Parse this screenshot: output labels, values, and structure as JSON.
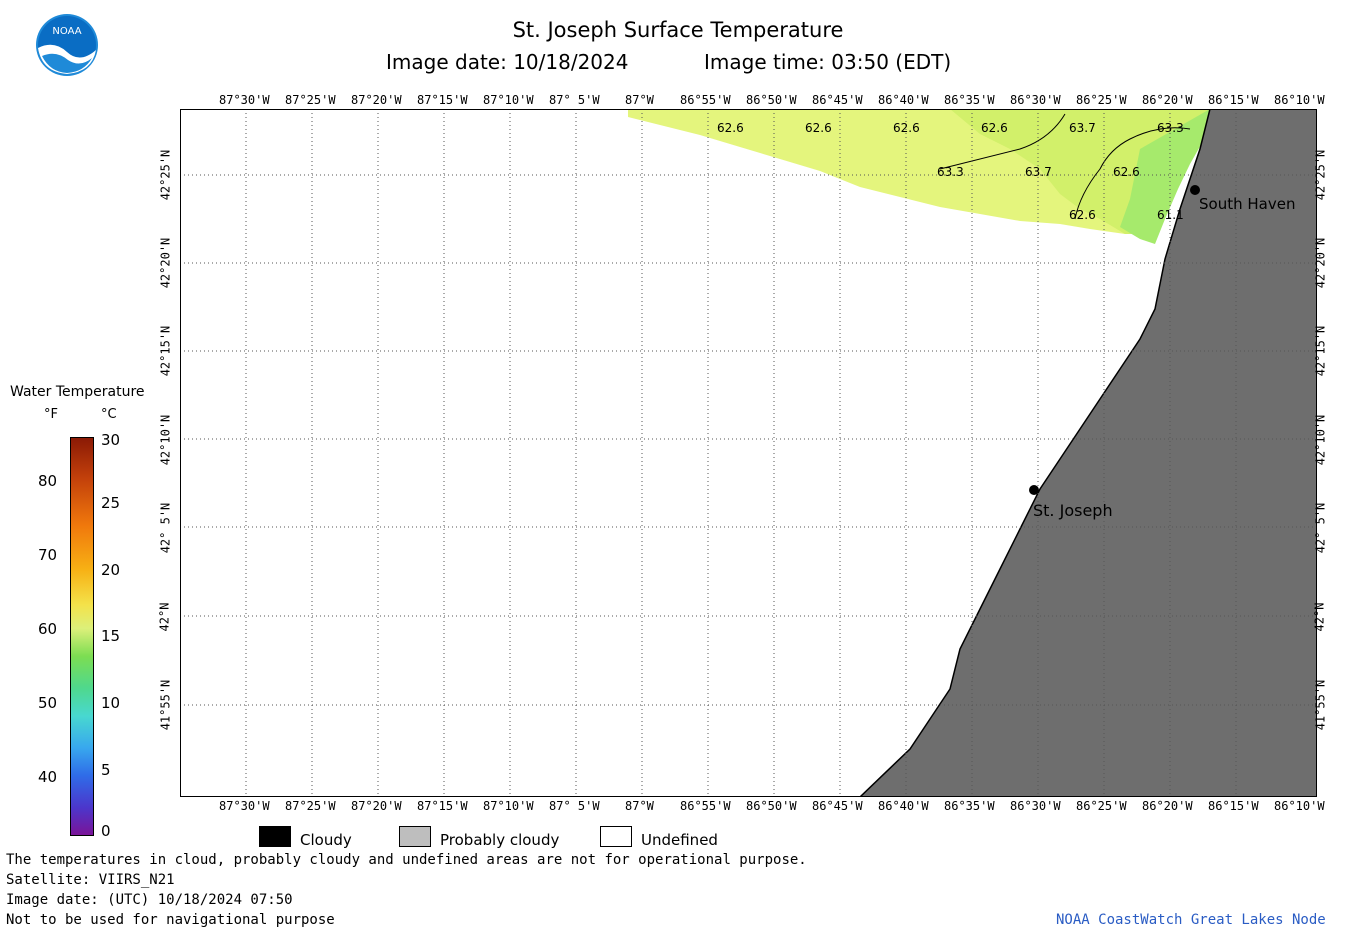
{
  "header": {
    "title": "St. Joseph Surface Temperature",
    "image_date_label": "Image date: 10/18/2024",
    "image_time_label": "Image time: 03:50 (EDT)"
  },
  "logo": {
    "text": "NOAA"
  },
  "map": {
    "lon_labels": [
      "87°30'W",
      "87°25'W",
      "87°20'W",
      "87°15'W",
      "87°10'W",
      "87° 5'W",
      "87°W",
      "86°55'W",
      "86°50'W",
      "86°45'W",
      "86°40'W",
      "86°35'W",
      "86°30'W",
      "86°25'W",
      "86°20'W",
      "86°15'W",
      "86°10'W"
    ],
    "lat_labels": [
      "42°25'N",
      "42°20'N",
      "42°15'N",
      "42°10'N",
      "42° 5'N",
      "42°N",
      "41°55'N"
    ],
    "temperature_labels": [
      "62.6",
      "62.6",
      "62.6",
      "62.6",
      "63.7",
      "63.3",
      "63.3",
      "63.7",
      "62.6",
      "62.6",
      "61.1"
    ],
    "cities": [
      "South Haven",
      "St. Joseph"
    ],
    "colors": {
      "land": "#6e6e6e",
      "water_warm": "#e4f57d",
      "water_mid": "#c4ee66",
      "water_cool": "#9ee86c",
      "grid": "#555555"
    }
  },
  "colorbar": {
    "title": "Water Temperature",
    "unit_f": "°F",
    "unit_c": "°C",
    "f_ticks": [
      "80",
      "70",
      "60",
      "50",
      "40"
    ],
    "c_ticks": [
      "30",
      "25",
      "20",
      "15",
      "10",
      "5",
      "0"
    ]
  },
  "legend": {
    "cloudy": "Cloudy",
    "probably_cloudy": "Probably cloudy",
    "undefined": "Undefined",
    "colors": {
      "cloudy": "#000000",
      "probably_cloudy": "#bebebe",
      "undefined": "#ffffff"
    }
  },
  "footer": {
    "disclaimer": "The temperatures in cloud, probably cloudy and undefined areas are not for operational purpose.",
    "satellite": "Satellite: VIIRS_N21",
    "utc_date": "Image date: (UTC) 10/18/2024  07:50",
    "nav_warning": "Not to be used for navigational purpose",
    "credit": "NOAA CoastWatch Great Lakes Node"
  }
}
